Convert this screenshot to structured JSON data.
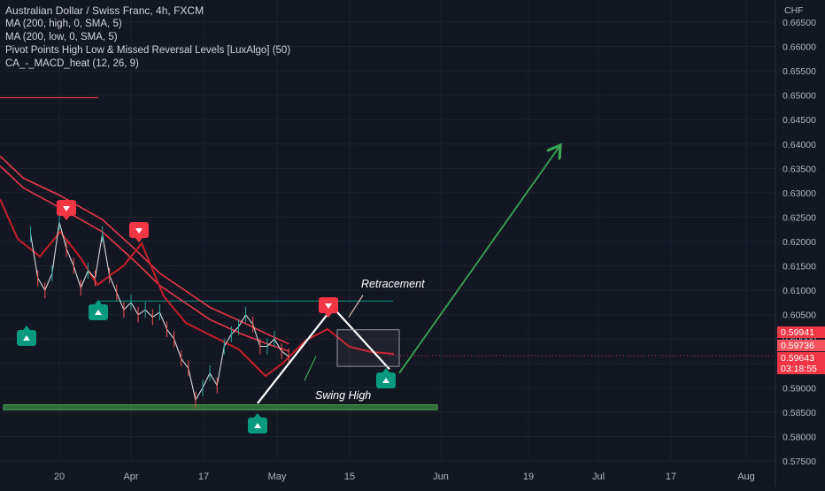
{
  "window_title": "Australian Dollar / Swiss Franc, 4h, FXCM",
  "indicators": [
    "MA (200, high, 0, SMA, 5)",
    "MA (200, low, 0, SMA, 5)",
    "Pivot Points High Low & Missed Reversal Levels [LuxAlgo] (50)",
    "CA_-_MACD_heat (12, 26, 9)"
  ],
  "currency": "CHF",
  "colors": {
    "background": "#131722",
    "ma_line": "#e8374a",
    "ema_line": "#c81d2a",
    "price_line": "#d8d8d8",
    "pivot_high": "#f23645",
    "pivot_low": "#089981",
    "support_zone": "#4caf50",
    "projection_arrow": "#3aa354",
    "annotation_line": "#ffffff"
  },
  "annotations": {
    "retracement": "Retracement",
    "swing_high": "Swing High"
  },
  "price_labels": [
    {
      "value": "0.59941",
      "color": "#f23645"
    },
    {
      "value": "0.59736",
      "color": "#f7525f"
    },
    {
      "value": "0.59643",
      "color": "#f23645"
    },
    {
      "value": "03:18:55",
      "color": "#f23645"
    }
  ],
  "chart_data": {
    "type": "line",
    "title": "Australian Dollar / Swiss Franc, 4h, FXCM",
    "yaxis_ticks": [
      "0.66500",
      "0.66000",
      "0.65500",
      "0.65000",
      "0.64500",
      "0.64000",
      "0.63500",
      "0.63000",
      "0.62500",
      "0.62000",
      "0.61500",
      "0.61000",
      "0.60500",
      "0.60000",
      "0.59500",
      "0.59000",
      "0.58500",
      "0.58000",
      "0.57500"
    ],
    "xaxis_ticks": [
      "20",
      "Apr",
      "17",
      "May",
      "15",
      "Jun",
      "19",
      "Jul",
      "17",
      "Aug"
    ],
    "ylim": [
      0.5745,
      0.6665
    ],
    "series": [
      {
        "name": "price",
        "x": [
          "Mar 12",
          "Mar 14",
          "Mar 16",
          "Mar 18",
          "Mar 20",
          "Mar 22",
          "Mar 24",
          "Mar 26",
          "Mar 28",
          "Mar 30",
          "Apr 01",
          "Apr 03",
          "Apr 05",
          "Apr 07",
          "Apr 09",
          "Apr 11",
          "Apr 13",
          "Apr 15",
          "Apr 17",
          "Apr 19",
          "Apr 21",
          "Apr 23",
          "Apr 25",
          "Apr 27",
          "Apr 29",
          "May 01",
          "May 03",
          "May 05",
          "May 07",
          "May 09",
          "May 11",
          "May 13",
          "May 15",
          "May 17",
          "May 19",
          "May 21",
          "May 23"
        ],
        "values": [
          0.6215,
          0.6125,
          0.61,
          0.6135,
          0.624,
          0.6185,
          0.615,
          0.6105,
          0.614,
          0.6125,
          0.6215,
          0.613,
          0.6095,
          0.606,
          0.6075,
          0.605,
          0.606,
          0.6045,
          0.6055,
          0.602,
          0.6,
          0.596,
          0.594,
          0.5875,
          0.59,
          0.593,
          0.5905,
          0.5985,
          0.601,
          0.6025,
          0.605,
          0.603,
          0.5985,
          0.5985,
          0.6,
          0.5975,
          0.5964
        ]
      },
      {
        "name": "MA (200, high, 0, SMA, 5)",
        "x": [
          "Mar 10",
          "Mar 20",
          "Apr 01",
          "Apr 10",
          "Apr 17",
          "Apr 25",
          "May 01",
          "May 10",
          "May 17",
          "May 23"
        ],
        "values": [
          0.633,
          0.6295,
          0.6245,
          0.6185,
          0.6135,
          0.6095,
          0.6065,
          0.6035,
          0.601,
          0.599
        ]
      },
      {
        "name": "MA (200, low, 0, SMA, 5)",
        "x": [
          "Mar 10",
          "Mar 20",
          "Apr 01",
          "Apr 10",
          "Apr 17",
          "Apr 25",
          "May 01",
          "May 10",
          "May 17",
          "May 23"
        ],
        "values": [
          0.631,
          0.627,
          0.622,
          0.616,
          0.611,
          0.607,
          0.604,
          0.601,
          0.599,
          0.5975
        ]
      }
    ],
    "pivot_highs": [
      {
        "x": "Mar 20",
        "value": 0.6258
      },
      {
        "x": "Apr 01",
        "value": 0.6238
      },
      {
        "x": "May 10",
        "value": 0.6062
      }
    ],
    "pivot_lows": [
      {
        "x": "Mar 12",
        "value": 0.599
      },
      {
        "x": "Mar 26",
        "value": 0.607
      },
      {
        "x": "Apr 27",
        "value": 0.5862
      },
      {
        "x": "May 20",
        "value": 0.5915
      }
    ],
    "levels": [
      {
        "value": 0.6495,
        "color": "#f23645"
      },
      {
        "value": 0.6078,
        "color": "#089981"
      }
    ],
    "support_zone": [
      0.5855,
      0.5865
    ],
    "projection": {
      "from": 0.593,
      "to": 0.6395
    }
  }
}
